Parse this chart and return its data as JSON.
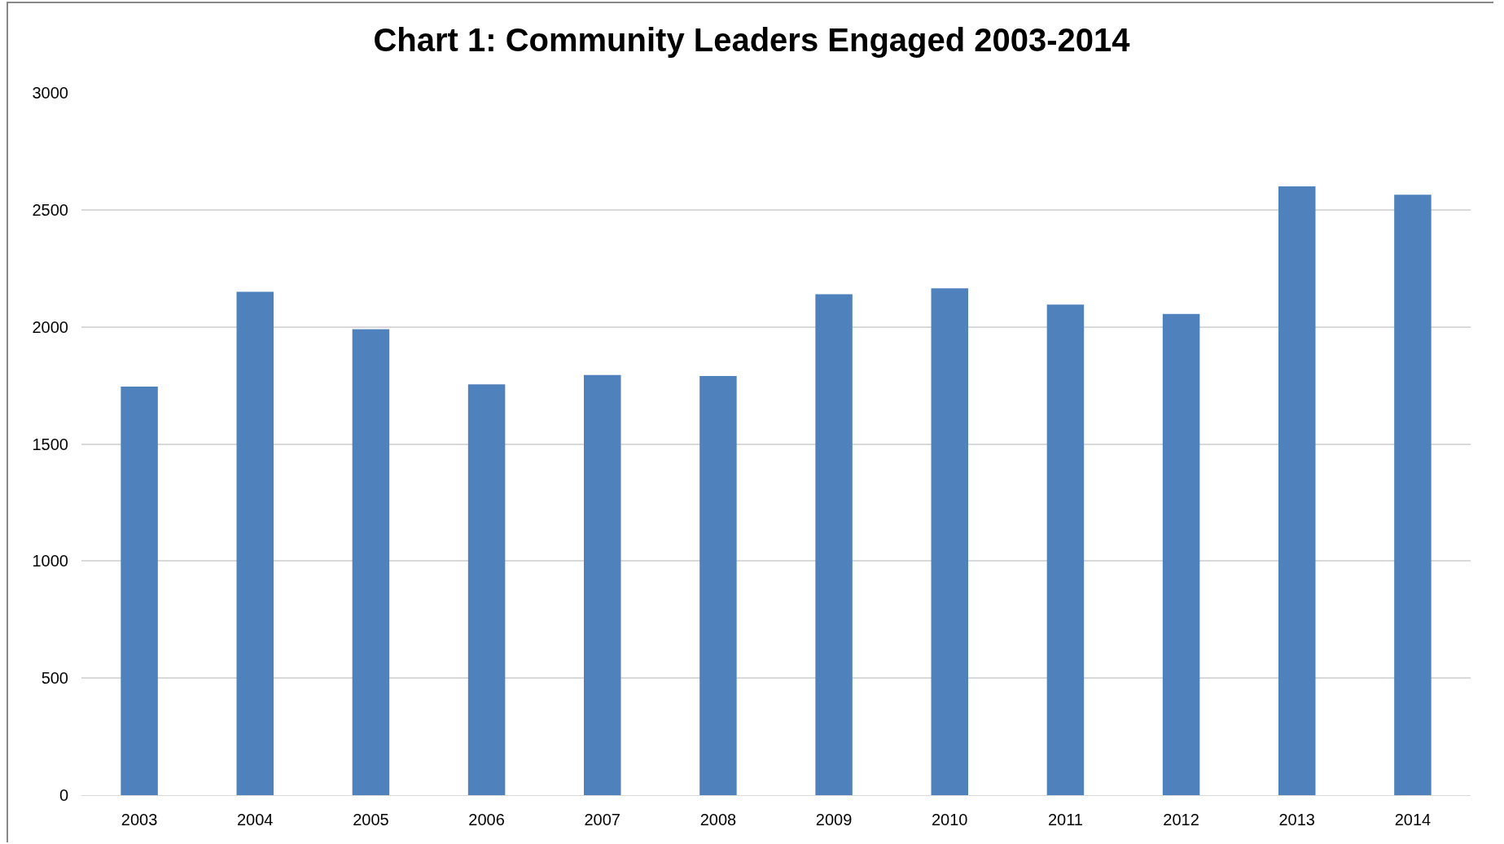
{
  "chart_data": {
    "type": "bar",
    "title": "Chart 1: Community Leaders Engaged 2003-2014",
    "categories": [
      "2003",
      "2004",
      "2005",
      "2006",
      "2007",
      "2008",
      "2009",
      "2010",
      "2011",
      "2012",
      "2013",
      "2014"
    ],
    "values": [
      1745,
      2150,
      1990,
      1755,
      1795,
      1790,
      2140,
      2165,
      2095,
      2055,
      2600,
      2565
    ],
    "color": "#4f81bd",
    "ylim": [
      0,
      3000
    ],
    "yticks": [
      0,
      500,
      1000,
      1500,
      2000,
      2500,
      3000
    ],
    "grid": "y"
  }
}
